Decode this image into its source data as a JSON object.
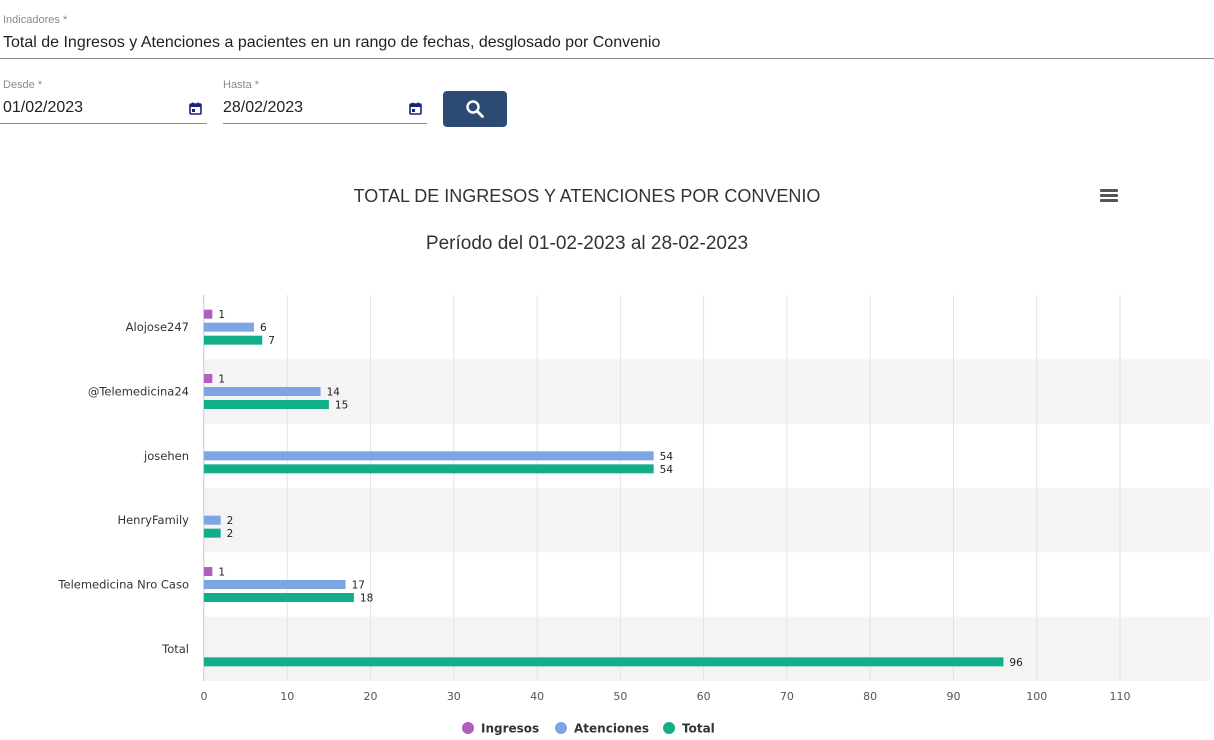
{
  "form": {
    "indicator_label": "Indicadores *",
    "indicator_value": "Total de Ingresos y Atenciones a pacientes en un rango de fechas, desglosado por Convenio",
    "from_label": "Desde *",
    "from_value": "01/02/2023",
    "to_label": "Hasta *",
    "to_value": "28/02/2023",
    "calendar_icon": "calendar-icon",
    "search_icon": "search-icon",
    "button_color": "#2c4a72"
  },
  "chart_data": {
    "type": "bar",
    "orientation": "horizontal",
    "title": "TOTAL DE INGRESOS Y ATENCIONES POR CONVENIO",
    "subtitle": "Período del 01-02-2023 al 28-02-2023",
    "categories": [
      "Alojose247",
      "@Telemedicina24",
      "josehen",
      "HenryFamily",
      "Telemedicina Nro Caso",
      "Total"
    ],
    "series": [
      {
        "name": "Ingresos",
        "color": "#b05fbf",
        "values": [
          1,
          1,
          0,
          0,
          1,
          0
        ]
      },
      {
        "name": "Atenciones",
        "color": "#7da4e3",
        "values": [
          6,
          14,
          54,
          2,
          17,
          0
        ]
      },
      {
        "name": "Total",
        "color": "#12ae8a",
        "values": [
          7,
          15,
          54,
          2,
          18,
          96
        ]
      }
    ],
    "xlim": [
      0,
      110
    ],
    "xticks": [
      "0",
      "10",
      "20",
      "30",
      "40",
      "50",
      "60",
      "70",
      "80",
      "90",
      "100",
      "110"
    ],
    "grid": true,
    "legend": "bottom-center",
    "data_labels": true,
    "menu_icon": "hamburger-menu-icon"
  }
}
